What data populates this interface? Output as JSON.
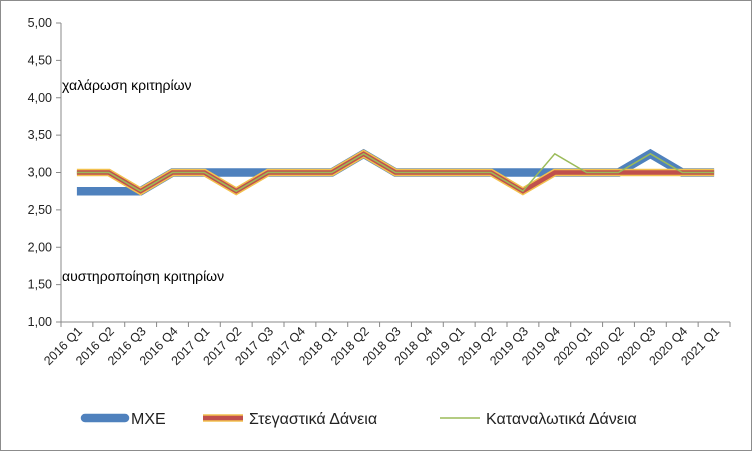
{
  "chart_data": {
    "type": "line",
    "categories": [
      "2016 Q1",
      "2016 Q2",
      "2016 Q3",
      "2016 Q4",
      "2017 Q1",
      "2017 Q2",
      "2017 Q3",
      "2017 Q4",
      "2018 Q1",
      "2018 Q2",
      "2018 Q3",
      "2018 Q4",
      "2019 Q1",
      "2019 Q2",
      "2019 Q3",
      "2019 Q4",
      "2020 Q1",
      "2020 Q2",
      "2020 Q3",
      "2020 Q4",
      "2021 Q1"
    ],
    "y_ticks": [
      "1,00",
      "1,50",
      "2,00",
      "2,50",
      "3,00",
      "3,50",
      "4,00",
      "4,50",
      "5,00"
    ],
    "ylim": [
      1,
      5
    ],
    "grid": false,
    "legend_position": "bottom",
    "annotations": {
      "upper": "χαλάρωση κριτηρίων",
      "lower": "αυστηροποίηση κριτηρίων"
    },
    "series": [
      {
        "name": "ΜΧΕ",
        "color": "#4f81bd",
        "values": [
          2.75,
          2.75,
          2.75,
          3.0,
          3.0,
          3.0,
          3.0,
          3.0,
          3.0,
          3.25,
          3.0,
          3.0,
          3.0,
          3.0,
          3.0,
          3.0,
          3.0,
          3.0,
          3.25,
          3.0,
          3.0
        ]
      },
      {
        "name": "Στεγαστικά Δάνεια",
        "color": "#c0504d",
        "values": [
          3.0,
          3.0,
          2.75,
          3.0,
          3.0,
          2.75,
          3.0,
          3.0,
          3.0,
          3.25,
          3.0,
          3.0,
          3.0,
          3.0,
          2.75,
          3.0,
          3.0,
          3.0,
          3.0,
          3.0,
          3.0
        ]
      },
      {
        "name": "Καταναλωτικά Δάνεια",
        "color": "#9bbb59",
        "values": [
          3.0,
          3.0,
          2.75,
          3.0,
          3.0,
          2.75,
          3.0,
          3.0,
          3.0,
          3.25,
          3.0,
          3.0,
          3.0,
          3.0,
          2.75,
          3.25,
          3.0,
          3.0,
          3.25,
          3.0,
          3.0
        ]
      }
    ]
  }
}
